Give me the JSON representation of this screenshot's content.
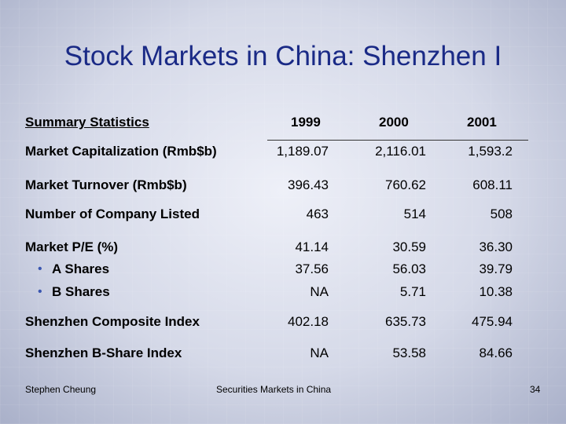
{
  "title": "Stock Markets in China: Shenzhen I",
  "table": {
    "header": {
      "label": "Summary Statistics",
      "years": [
        "1999",
        "2000",
        "2001"
      ]
    },
    "rows": [
      {
        "label": "Market Capitalization (Rmb$b)",
        "values": [
          "1,189.07",
          "2,116.01",
          "1,593.2"
        ]
      },
      {
        "label": "Market Turnover (Rmb$b)",
        "values": [
          "396.43",
          "760.62",
          "608.11"
        ]
      },
      {
        "label": "Number of Company Listed",
        "values": [
          "463",
          "514",
          "508"
        ]
      },
      {
        "label": "Market P/E (%)",
        "values": [
          "41.14",
          "30.59",
          "36.30"
        ]
      },
      {
        "label": "A Shares",
        "values": [
          "37.56",
          "56.03",
          "39.79"
        ]
      },
      {
        "label": "B Shares",
        "values": [
          "NA",
          "5.71",
          "10.38"
        ]
      },
      {
        "label": "Shenzhen Composite Index",
        "values": [
          "402.18",
          "635.73",
          "475.94"
        ]
      },
      {
        "label": "Shenzhen B-Share Index",
        "values": [
          "NA",
          "53.58",
          "84.66"
        ]
      }
    ]
  },
  "footer": {
    "author": "Stephen Cheung",
    "course": "Securities Markets in China",
    "page": "34"
  }
}
